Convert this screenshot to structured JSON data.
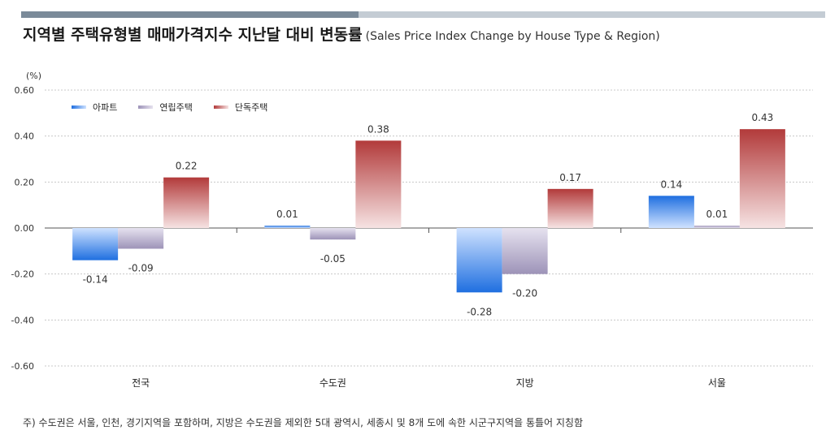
{
  "header": {
    "title": "지역별 주택유형별 매매가격지수 지난달 대비 변동률",
    "subtitle": "(Sales Price Index Change by House Type & Region)"
  },
  "footnote": "주) 수도권은 서울, 인천, 경기지역을 포함하며, 지방은 수도권을 제외한 5대 광역시, 세종시 및 8개 도에 속한 시군구지역을 통틀어 지칭함",
  "chart_data": {
    "type": "bar",
    "title": "지역별 주택유형별 매매가격지수 지난달 대비 변동률",
    "ylabel": "(%)",
    "ylim": [
      -0.6,
      0.6
    ],
    "yticks": [
      "0.60",
      "0.40",
      "0.20",
      "0.00",
      "-0.20",
      "-0.40",
      "-0.60"
    ],
    "ytick_values": [
      0.6,
      0.4,
      0.2,
      0.0,
      -0.2,
      -0.4,
      -0.6
    ],
    "grid": true,
    "legend_position": "top-left",
    "categories": [
      "전국",
      "수도권",
      "지방",
      "서울"
    ],
    "series": [
      {
        "name": "아파트",
        "values": [
          -0.14,
          0.01,
          -0.28,
          0.14
        ],
        "labels": [
          "-0.14",
          "0.01",
          "-0.28",
          "0.14"
        ],
        "color": "#1f6fe0",
        "color_light": "#cfe2ff"
      },
      {
        "name": "연립주택",
        "values": [
          -0.09,
          -0.05,
          -0.2,
          0.01
        ],
        "labels": [
          "-0.09",
          "-0.05",
          "-0.20",
          "0.01"
        ],
        "color": "#9d93b8",
        "color_light": "#e6e2ef"
      },
      {
        "name": "단독주택",
        "values": [
          0.22,
          0.38,
          0.17,
          0.43
        ],
        "labels": [
          "0.22",
          "0.38",
          "0.17",
          "0.43"
        ],
        "color": "#b23a3a",
        "color_light": "#f6e3e3"
      }
    ]
  }
}
